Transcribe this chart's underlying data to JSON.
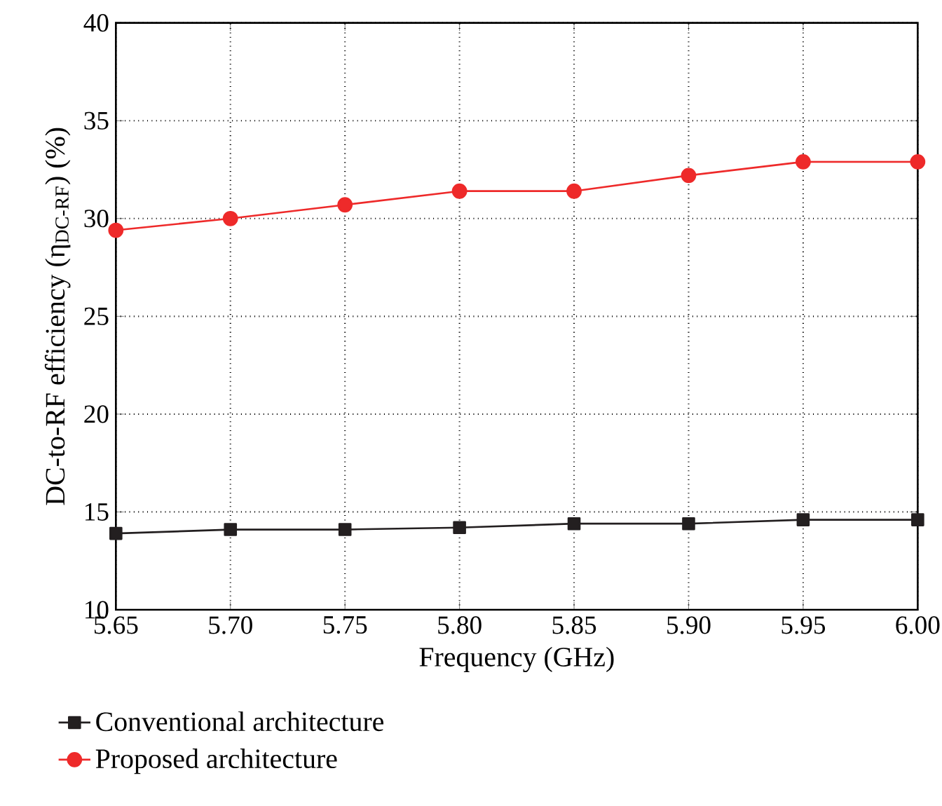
{
  "chart_data": {
    "type": "line",
    "xlabel": "Frequency (GHz)",
    "ylabel": "DC-to-RF efficiency (η$_{DC-RF}$) (%)",
    "x": [
      5.65,
      5.7,
      5.75,
      5.8,
      5.85,
      5.9,
      5.95,
      6.0
    ],
    "series": [
      {
        "name": "Conventional architecture",
        "color": "#231f20",
        "marker": "square",
        "values": [
          13.9,
          14.1,
          14.1,
          14.2,
          14.4,
          14.4,
          14.6,
          14.6
        ]
      },
      {
        "name": "Proposed architecture",
        "color": "#ee2a2a",
        "marker": "circle",
        "values": [
          29.4,
          30.0,
          30.7,
          31.4,
          31.4,
          32.2,
          32.9,
          32.9
        ]
      }
    ],
    "xlim": [
      5.65,
      6.0
    ],
    "xticks": [
      {
        "value": 5.65,
        "label": "5.65"
      },
      {
        "value": 5.7,
        "label": "5.70"
      },
      {
        "value": 5.75,
        "label": "5.75"
      },
      {
        "value": 5.8,
        "label": "5.80"
      },
      {
        "value": 5.85,
        "label": "5.85"
      },
      {
        "value": 5.9,
        "label": "5.90"
      },
      {
        "value": 5.95,
        "label": "5.95"
      },
      {
        "value": 6.0,
        "label": "6.00"
      }
    ],
    "ylim": [
      10,
      40
    ],
    "yticks": [
      10,
      15,
      20,
      25,
      30,
      35,
      40
    ],
    "grid": true,
    "legend": "bottom",
    "line_style": "solid"
  }
}
